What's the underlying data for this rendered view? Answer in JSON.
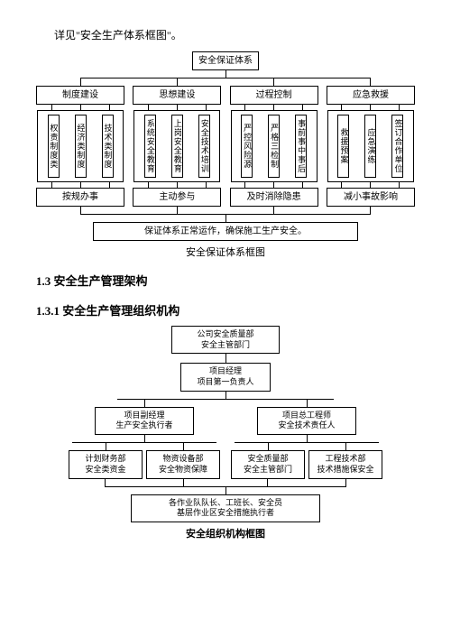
{
  "intro": "详见\"安全生产体系框图\"。",
  "diagram1": {
    "top": "安全保证体系",
    "cols": [
      {
        "head": "制度建设",
        "items": [
          "权责制度类",
          "经济类制度",
          "技术类制度"
        ],
        "foot": "按规办事"
      },
      {
        "head": "思想建设",
        "items": [
          "系统安全教育",
          "上岗安全教育",
          "安全技术培训"
        ],
        "foot": "主动参与"
      },
      {
        "head": "过程控制",
        "items": [
          "严控风险源",
          "严格三检制",
          "事前事中事后"
        ],
        "foot": "及时消除隐患"
      },
      {
        "head": "应急救援",
        "items": [
          "救援预案",
          "应急演练",
          "签订合作单位"
        ],
        "foot": "减小事故影响"
      }
    ],
    "bottom": "保证体系正常运作，确保施工生产安全。",
    "caption": "安全保证体系框图"
  },
  "heading13": "1.3 安全生产管理架构",
  "heading131": "1.3.1 安全生产管理组织机构",
  "diagram2": {
    "l1": "公司安全质量部\n安全主管部门",
    "l2": "项目经理\n项目第一负责人",
    "l3a": "项目副经理\n生产安全执行者",
    "l3b": "项目总工程师\n安全技术责任人",
    "l4a": "计划财务部\n安全类资金",
    "l4b": "物资设备部\n安全物资保障",
    "l4c": "安全质量部\n安全主管部门",
    "l4d": "工程技术部\n技术措施保安全",
    "l5": "各作业队队长、工班长、安全员\n基层作业区安全措施执行者",
    "caption": "安全组织机构框图"
  }
}
